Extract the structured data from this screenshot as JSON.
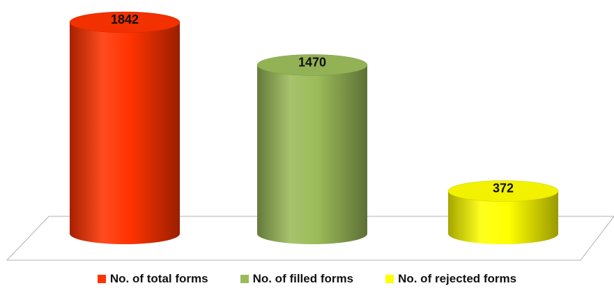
{
  "chart_data": {
    "type": "bar",
    "style": "3d-cylinder",
    "categories": [
      "No. of total forms",
      "No. of filled forms",
      "No. of rejected forms"
    ],
    "values": [
      1842,
      1470,
      372
    ],
    "data_labels": [
      "1842",
      "1470",
      "372"
    ],
    "colors": [
      "#ff3300",
      "#9bbb59",
      "#ffff00"
    ],
    "title": "",
    "xlabel": "",
    "ylabel": "",
    "ylim": [
      0,
      1842
    ],
    "grid": false,
    "legend": {
      "position": "bottom",
      "entries": [
        "No. of total forms",
        "No. of filled forms",
        "No. of rejected forms"
      ]
    }
  }
}
